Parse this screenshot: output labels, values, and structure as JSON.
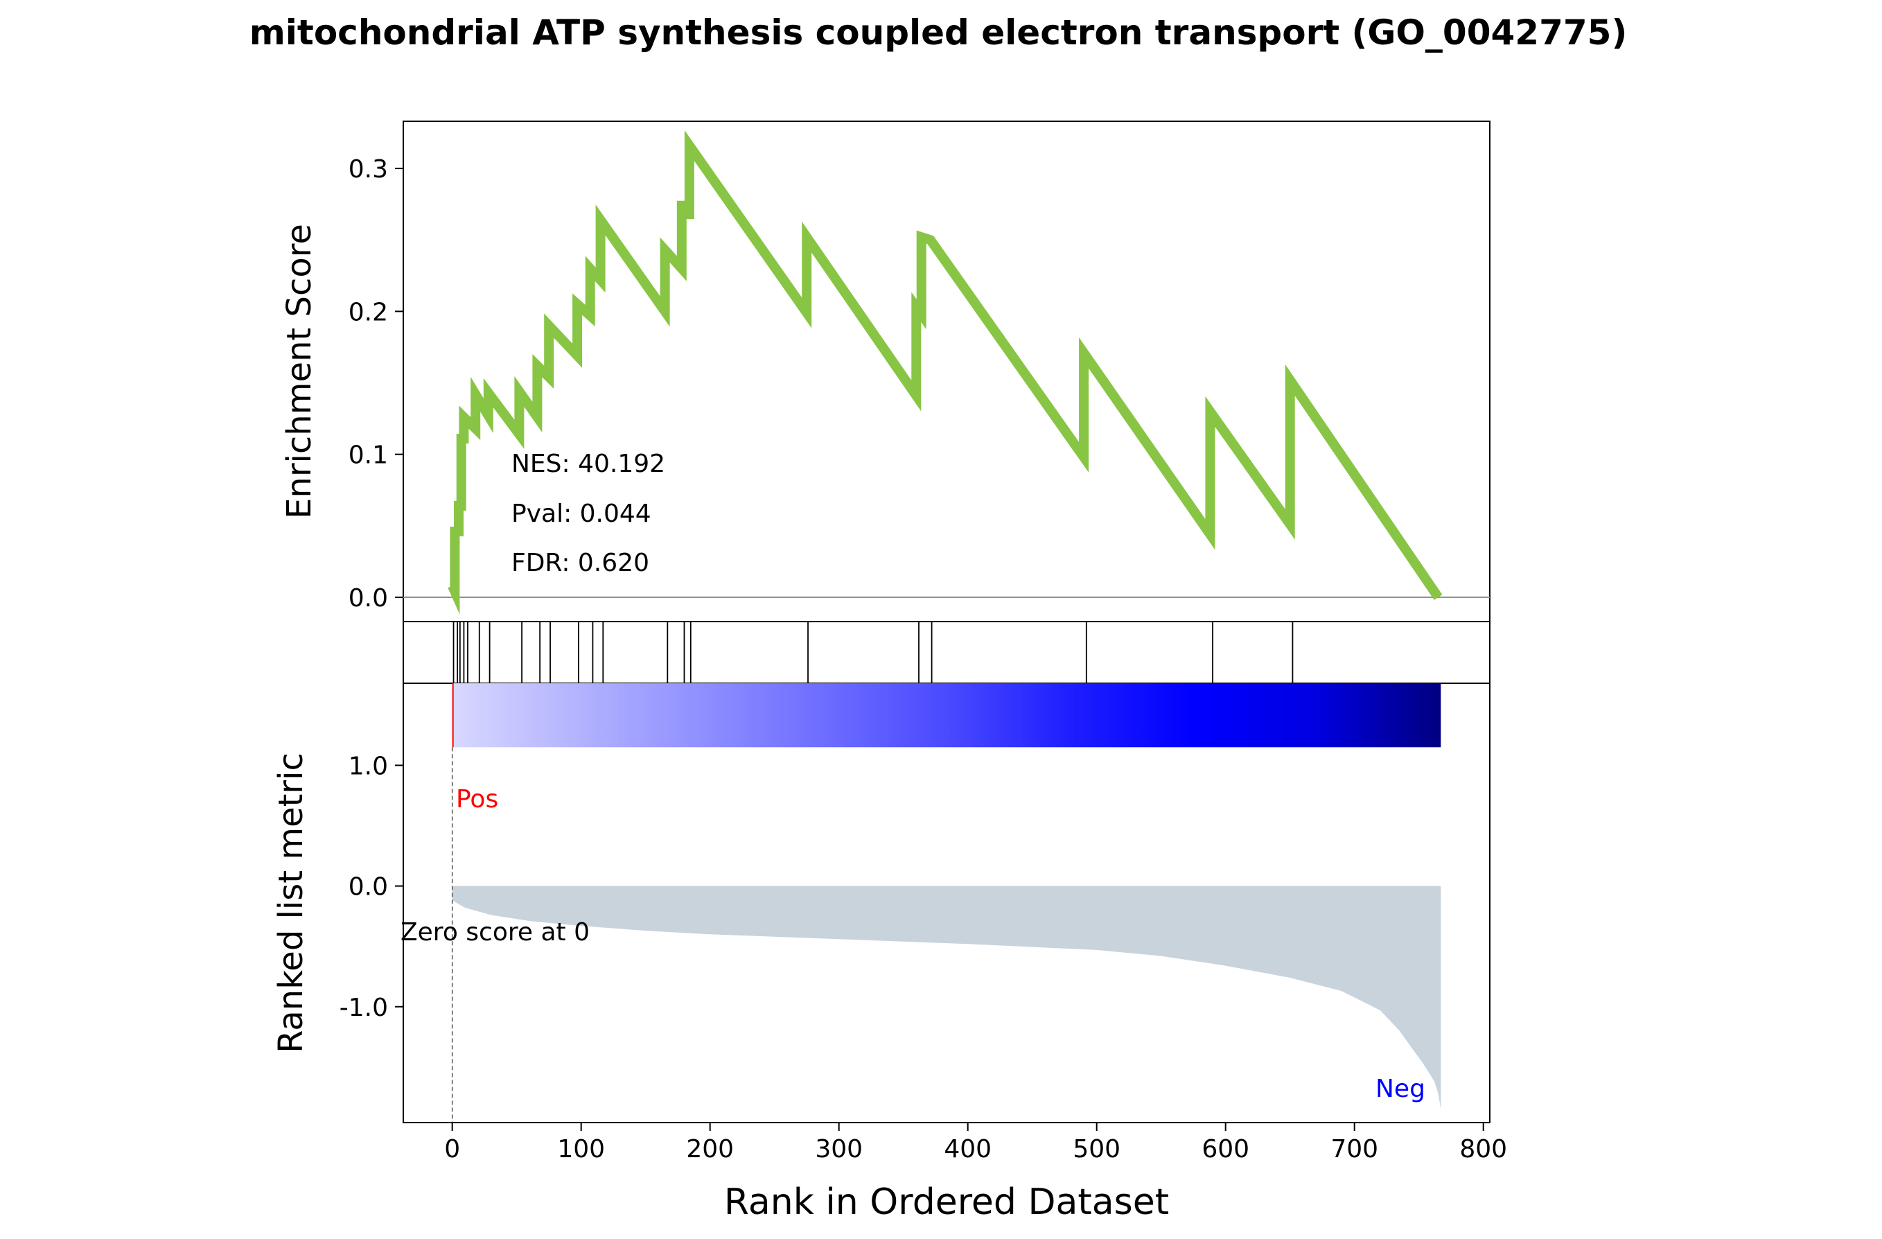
{
  "chart_data": {
    "type": "line",
    "title": "mitochondrial ATP synthesis coupled electron transport (GO_0042775)",
    "xlabel": "Rank in Ordered Dataset",
    "xlim": [
      -38,
      805
    ],
    "xticks": [
      0,
      100,
      200,
      300,
      400,
      500,
      600,
      700,
      800
    ],
    "panels": {
      "enrichment": {
        "ylabel": "Enrichment Score",
        "ylim": [
          -0.017,
          0.333
        ],
        "yticks": [
          {
            "value": 0.0,
            "label": "0.0"
          },
          {
            "value": 0.1,
            "label": "0.1"
          },
          {
            "value": 0.2,
            "label": "0.2"
          },
          {
            "value": 0.3,
            "label": "0.3"
          }
        ],
        "line_color": "#88c544",
        "x": [
          0,
          2,
          2,
          5,
          5,
          7,
          7,
          9,
          9,
          18,
          18,
          28,
          28,
          52,
          52,
          66,
          66,
          75,
          75,
          97,
          97,
          107,
          107,
          115,
          115,
          165,
          165,
          178,
          178,
          180,
          180,
          184,
          184,
          275,
          275,
          360,
          360,
          364,
          364,
          371,
          371,
          490,
          490,
          588,
          588,
          650,
          650,
          765
        ],
        "y": [
          0.008,
          0.004,
          0.046,
          0.046,
          0.064,
          0.064,
          0.111,
          0.111,
          0.126,
          0.118,
          0.142,
          0.127,
          0.143,
          0.114,
          0.144,
          0.126,
          0.162,
          0.154,
          0.19,
          0.169,
          0.205,
          0.197,
          0.23,
          0.222,
          0.264,
          0.2,
          0.243,
          0.23,
          0.274,
          0.274,
          0.268,
          0.268,
          0.316,
          0.199,
          0.252,
          0.141,
          0.203,
          0.198,
          0.252,
          0.25,
          0.25,
          0.098,
          0.171,
          0.044,
          0.13,
          0.051,
          0.152,
          0.0
        ]
      },
      "hits": {
        "x": [
          1,
          4,
          6,
          9,
          12,
          21,
          29,
          54,
          68,
          76,
          98,
          109,
          117,
          167,
          180,
          185,
          276,
          362,
          372,
          492,
          590,
          652
        ]
      },
      "ranked": {
        "ylabel": "Ranked list metric",
        "ylim": [
          -1.96,
          1.68
        ],
        "yticks": [
          {
            "value": 1.0,
            "label": "1.0"
          },
          {
            "value": 0.0,
            "label": "0.0"
          },
          {
            "value": -1.0,
            "label": "-1.0"
          }
        ],
        "heatbar_range": [
          1.15,
          1.68
        ],
        "heatbar_colors": [
          "#d8d8ff",
          "#b3b3ff",
          "#9090ff",
          "#6d6dff",
          "#4a4aff",
          "#1e1eff",
          "#0000ff",
          "#0000e0",
          "#000080"
        ],
        "fill_color": "#c9d3dc",
        "x": [
          0,
          10,
          30,
          60,
          100,
          150,
          200,
          300,
          400,
          500,
          550,
          600,
          650,
          690,
          720,
          735,
          745,
          752,
          758,
          762,
          765,
          767
        ],
        "y": [
          -0.12,
          -0.18,
          -0.24,
          -0.29,
          -0.33,
          -0.37,
          -0.4,
          -0.44,
          -0.48,
          -0.53,
          -0.58,
          -0.66,
          -0.76,
          -0.87,
          -1.03,
          -1.2,
          -1.35,
          -1.45,
          -1.55,
          -1.62,
          -1.72,
          -1.85
        ]
      }
    },
    "annotations": {
      "nes": "NES: 40.192",
      "pval": "Pval: 0.044",
      "fdr": "FDR: 0.620",
      "pos": "Pos",
      "neg": "Neg",
      "zero_score": "Zero score at 0"
    },
    "colors": {
      "pos": "#ff0000",
      "neg": "#0000ff",
      "axis": "#000000",
      "zero_line": "#888888"
    }
  }
}
